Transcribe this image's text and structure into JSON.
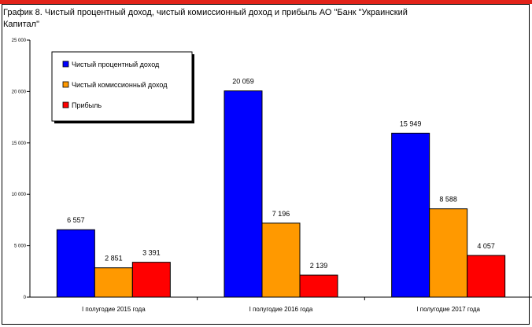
{
  "chart_data": {
    "type": "bar",
    "title": "График 8. Чистый процентный доход, чистый комиссионный доход и прибыль АО \"Банк \"Украинский Капитал\"",
    "categories": [
      "І полугодие 2015 года",
      "І полугодие 2016 года",
      "І полугодие 2017 года"
    ],
    "series": [
      {
        "name": "Чистый процентный доход",
        "color": "#0000ff",
        "values": [
          6557,
          20059,
          15949
        ],
        "labels": [
          "6 557",
          "20 059",
          "15 949"
        ]
      },
      {
        "name": "Чистый комиссионный доход",
        "color": "#ff9900",
        "values": [
          2851,
          7196,
          8588
        ],
        "labels": [
          "2 851",
          "7 196",
          "8 588"
        ]
      },
      {
        "name": "Прибыль",
        "color": "#ff0000",
        "values": [
          3391,
          2139,
          4057
        ],
        "labels": [
          "3 391",
          "2 139",
          "4 057"
        ]
      }
    ],
    "ylim": [
      0,
      25000
    ],
    "yticks": [
      0,
      5000,
      10000,
      15000,
      20000,
      25000
    ],
    "ytick_labels": [
      "0",
      "5 000",
      "10 000",
      "15 000",
      "20 000",
      "25 000"
    ],
    "grid": false,
    "legend_position": "top-left"
  }
}
